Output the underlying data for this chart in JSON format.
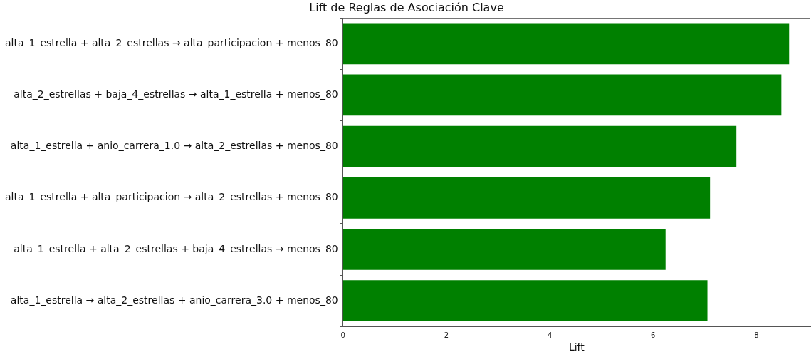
{
  "chart_data": {
    "type": "bar",
    "orientation": "horizontal",
    "title": "Lift de Reglas de Asociación Clave",
    "xlabel": "Lift",
    "categories": [
      "alta_1_estrella + alta_2_estrellas → alta_participacion + menos_80",
      "alta_2_estrellas + baja_4_estrellas → alta_1_estrella + menos_80",
      "alta_1_estrella + anio_carrera_1.0 → alta_2_estrellas + menos_80",
      "alta_1_estrella + alta_participacion → alta_2_estrellas + menos_80",
      "alta_1_estrella + alta_2_estrellas + baja_4_estrellas → menos_80",
      "alta_1_estrella → alta_2_estrellas + anio_carrera_3.0 + menos_80"
    ],
    "values": [
      8.63,
      8.48,
      7.61,
      7.1,
      6.24,
      7.05
    ],
    "color": "#008000",
    "xlim": [
      0,
      9.04
    ],
    "xticks": [
      0,
      2,
      4,
      6,
      8
    ],
    "grid": false,
    "legend": false
  }
}
